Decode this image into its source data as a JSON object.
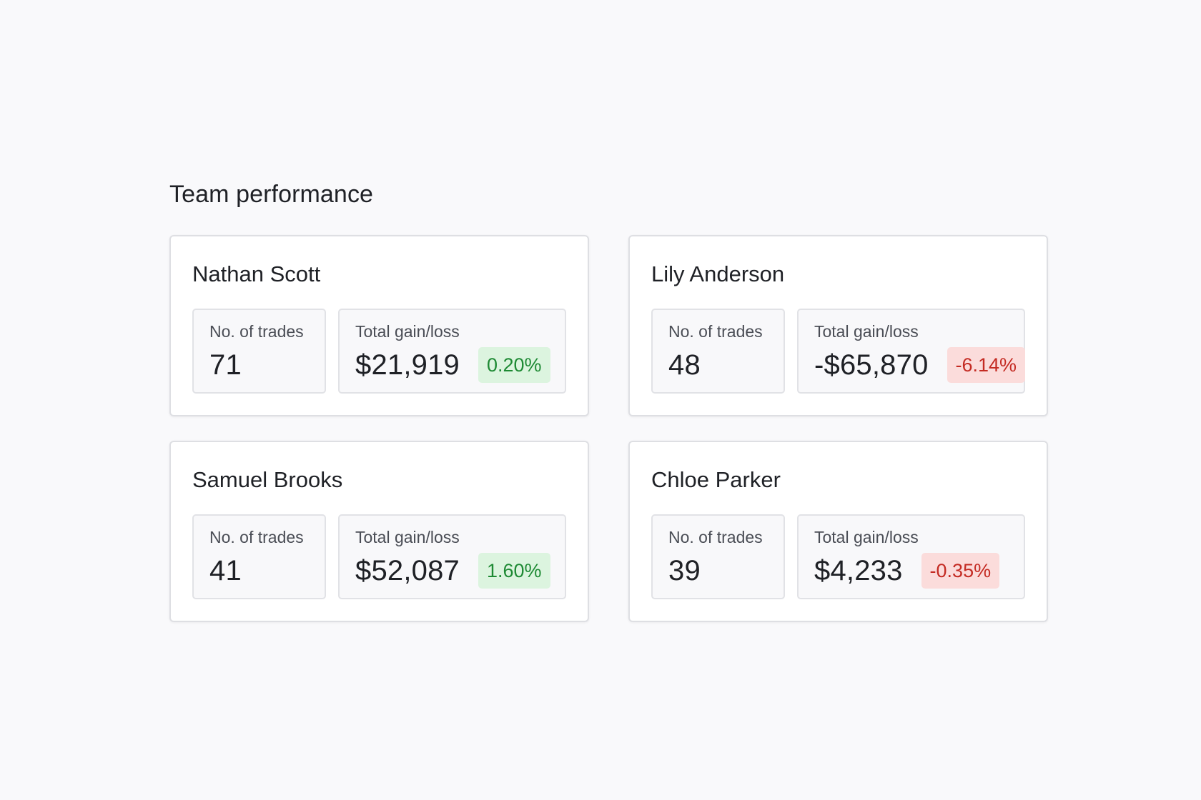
{
  "section": {
    "title": "Team performance"
  },
  "labels": {
    "trades": "No. of trades",
    "gain": "Total gain/loss"
  },
  "members": [
    {
      "name": "Nathan Scott",
      "trades": "71",
      "gain": "$21,919",
      "change": "0.20%",
      "trend": "up"
    },
    {
      "name": "Lily Anderson",
      "trades": "48",
      "gain": "-$65,870",
      "change": "-6.14%",
      "trend": "down"
    },
    {
      "name": "Samuel Brooks",
      "trades": "41",
      "gain": "$52,087",
      "change": "1.60%",
      "trend": "up"
    },
    {
      "name": "Chloe Parker",
      "trades": "39",
      "gain": "$4,233",
      "change": "-0.35%",
      "trend": "down"
    }
  ],
  "colors": {
    "positive_bg": "#dcf4df",
    "positive_text": "#1e8a34",
    "negative_bg": "#fbdcdb",
    "negative_text": "#c42b23"
  }
}
